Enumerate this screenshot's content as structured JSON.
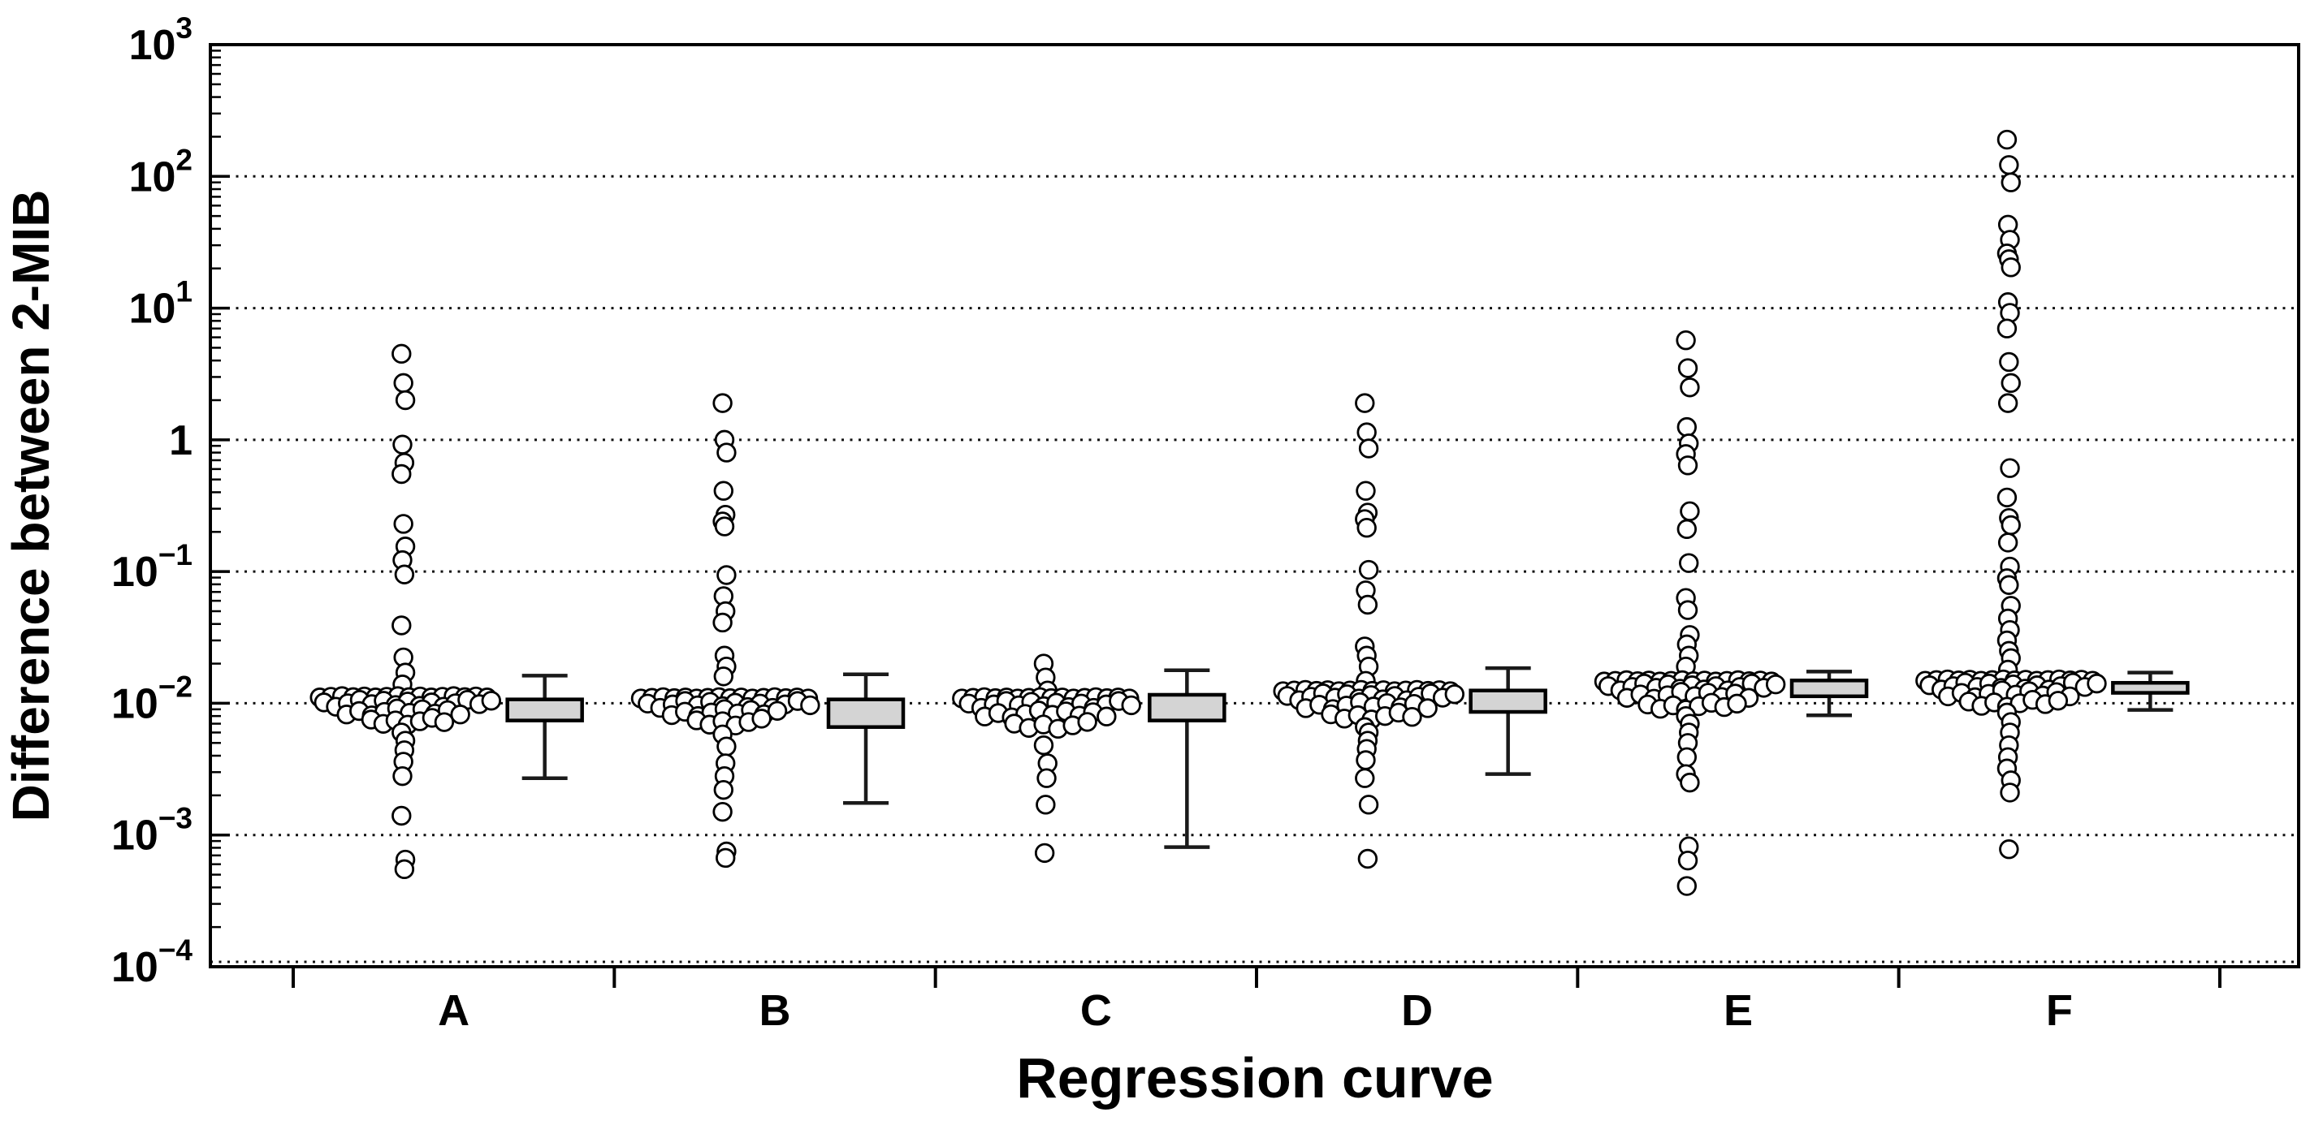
{
  "figure": {
    "background": "#ffffff",
    "frame_color": "#000000",
    "box_fill": "#d4d4d4",
    "box_border": "#000000",
    "whisker_color": "#1a1a1a",
    "point_fill": "#ffffff",
    "point_stroke": "#000000",
    "gridline_color": "#111111"
  },
  "chart_data": {
    "type": "scatter",
    "variant": "strip-plot-with-box-plots",
    "title": "",
    "xlabel": "Regression curve",
    "ylabel": "Difference between 2-MIB",
    "y_scale": "log",
    "ylim": [
      0.0001,
      1000
    ],
    "grid": "dotted horizontal lines at each decade",
    "gridline_values": [
      100,
      10,
      1,
      0.1,
      0.01,
      0.001,
      0.0001
    ],
    "y_ticks": [
      {
        "v": 1000,
        "base": "10",
        "exp": "3"
      },
      {
        "v": 100,
        "base": "10",
        "exp": "2"
      },
      {
        "v": 10,
        "base": "10",
        "exp": "1"
      },
      {
        "v": 1,
        "base": "1",
        "exp": ""
      },
      {
        "v": 0.1,
        "base": "10",
        "exp": "−1"
      },
      {
        "v": 0.01,
        "base": "10",
        "exp": "−2"
      },
      {
        "v": 0.001,
        "base": "10",
        "exp": "−3"
      },
      {
        "v": 0.0001,
        "base": "10",
        "exp": "−4"
      }
    ],
    "categories": [
      "A",
      "B",
      "C",
      "D",
      "E",
      "F"
    ],
    "series": [
      {
        "name": "A",
        "upper_column": [
          4.5,
          2.7,
          2.0,
          0.92,
          0.67,
          0.55,
          0.23,
          0.155,
          0.122,
          0.095,
          0.039,
          0.0223,
          0.0171,
          0.0139
        ],
        "band_rows": [
          {
            "v": 0.0112,
            "n": 16,
            "span": 206
          },
          {
            "v": 0.01,
            "n": 15,
            "span": 206
          },
          {
            "v": 0.0086,
            "n": 10,
            "span": 140
          },
          {
            "v": 0.0073,
            "n": 7,
            "span": 90
          }
        ],
        "lower_column": [
          0.006,
          0.0052,
          0.0044,
          0.0036,
          0.0028,
          0.0014,
          0.00065,
          0.00055
        ],
        "box": {
          "whisker_low": 0.0027,
          "q1": 0.0074,
          "q3": 0.0107,
          "whisker_high": 0.0162
        }
      },
      {
        "name": "B",
        "upper_column": [
          1.9,
          1.0,
          0.8,
          0.41,
          0.27,
          0.24,
          0.22,
          0.094,
          0.065,
          0.05,
          0.041,
          0.023,
          0.019,
          0.016
        ],
        "band_rows": [
          {
            "v": 0.011,
            "n": 16,
            "span": 206
          },
          {
            "v": 0.0098,
            "n": 14,
            "span": 200
          },
          {
            "v": 0.0085,
            "n": 9,
            "span": 130
          },
          {
            "v": 0.0072,
            "n": 6,
            "span": 80
          }
        ],
        "lower_column": [
          0.0058,
          0.0047,
          0.0035,
          0.0028,
          0.0022,
          0.0015,
          0.00075,
          0.00067
        ],
        "box": {
          "whisker_low": 0.00175,
          "q1": 0.0066,
          "q3": 0.0107,
          "whisker_high": 0.0166
        }
      },
      {
        "name": "C",
        "upper_column": [
          0.02,
          0.0157,
          0.0125
        ],
        "band_rows": [
          {
            "v": 0.011,
            "n": 16,
            "span": 206
          },
          {
            "v": 0.0098,
            "n": 14,
            "span": 200
          },
          {
            "v": 0.0083,
            "n": 10,
            "span": 150
          },
          {
            "v": 0.0068,
            "n": 6,
            "span": 90
          }
        ],
        "lower_column": [
          0.0048,
          0.0035,
          0.0027,
          0.0017,
          0.00073
        ],
        "box": {
          "whisker_low": 0.00081,
          "q1": 0.0074,
          "q3": 0.0116,
          "whisker_high": 0.0178
        }
      },
      {
        "name": "D",
        "upper_column": [
          1.9,
          1.14,
          0.86,
          0.41,
          0.28,
          0.25,
          0.215,
          0.103,
          0.072,
          0.056,
          0.027,
          0.023,
          0.019,
          0.0148
        ],
        "band_rows": [
          {
            "v": 0.0125,
            "n": 16,
            "span": 206
          },
          {
            "v": 0.0112,
            "n": 15,
            "span": 206
          },
          {
            "v": 0.0096,
            "n": 10,
            "span": 150
          },
          {
            "v": 0.008,
            "n": 7,
            "span": 100
          }
        ],
        "lower_column": [
          0.0066,
          0.006,
          0.0052,
          0.0045,
          0.0037,
          0.0027,
          0.0017,
          0.00066
        ],
        "box": {
          "whisker_low": 0.0029,
          "q1": 0.0086,
          "q3": 0.0125,
          "whisker_high": 0.0185
        }
      },
      {
        "name": "E",
        "upper_column": [
          5.7,
          3.5,
          2.5,
          1.25,
          0.94,
          0.78,
          0.64,
          0.287,
          0.21,
          0.116,
          0.063,
          0.051,
          0.033,
          0.028,
          0.023,
          0.019
        ],
        "band_rows": [
          {
            "v": 0.0148,
            "n": 16,
            "span": 206
          },
          {
            "v": 0.0133,
            "n": 15,
            "span": 206
          },
          {
            "v": 0.0115,
            "n": 10,
            "span": 150
          },
          {
            "v": 0.0095,
            "n": 8,
            "span": 110
          }
        ],
        "lower_column": [
          0.008,
          0.007,
          0.006,
          0.005,
          0.0039,
          0.0029,
          0.0025,
          0.00082,
          0.00064,
          0.00041
        ],
        "box": {
          "whisker_low": 0.0081,
          "q1": 0.0113,
          "q3": 0.0149,
          "whisker_high": 0.0174
        }
      },
      {
        "name": "F",
        "upper_column": [
          190,
          122,
          90,
          43,
          33,
          26,
          23.5,
          20.4,
          11.1,
          9.2,
          7.0,
          3.9,
          2.7,
          1.9,
          0.61,
          0.365,
          0.255,
          0.225,
          0.166,
          0.109,
          0.089,
          0.079,
          0.055,
          0.044,
          0.036,
          0.03,
          0.025,
          0.022,
          0.018
        ],
        "band_rows": [
          {
            "v": 0.015,
            "n": 16,
            "span": 206
          },
          {
            "v": 0.0135,
            "n": 15,
            "span": 206
          },
          {
            "v": 0.0118,
            "n": 10,
            "span": 150
          },
          {
            "v": 0.01,
            "n": 8,
            "span": 110
          }
        ],
        "lower_column": [
          0.0085,
          0.0072,
          0.006,
          0.0048,
          0.0039,
          0.0032,
          0.0026,
          0.0021,
          0.00078
        ],
        "box": {
          "whisker_low": 0.0089,
          "q1": 0.012,
          "q3": 0.0143,
          "whisker_high": 0.0171
        }
      }
    ],
    "legend": "none"
  }
}
